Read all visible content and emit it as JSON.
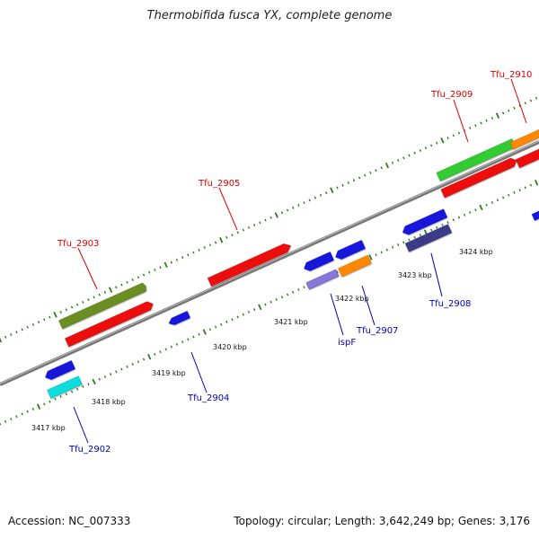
{
  "title": "Thermobifida fusca YX, complete genome",
  "footer": {
    "accession": "Accession: NC_007333",
    "topology": "Topology: circular; Length: 3,642,249 bp; Genes: 3,176"
  },
  "colors": {
    "backbone": "#888888",
    "tick": "#2e7d1e",
    "label_forward": "#dd0000",
    "label_reverse": "#0000bb",
    "cds_red": "#ee1111",
    "cds_olive": "#6b8e23",
    "cds_green": "#33cc33",
    "cds_blue": "#1515dd",
    "cds_cyan": "#11dddd",
    "cds_purple": "#8877dd",
    "cds_orange": "#ff8800",
    "cds_navy": "#3a3a8a"
  },
  "scale_labels": [
    "3417 kbp",
    "3418 kbp",
    "3419 kbp",
    "3420 kbp",
    "3421 kbp",
    "3422 kbp",
    "3423 kbp",
    "3424 kbp"
  ],
  "gene_labels": [
    {
      "text": "Tfu_2903",
      "strand": "forward"
    },
    {
      "text": "Tfu_2905",
      "strand": "forward"
    },
    {
      "text": "Tfu_2909",
      "strand": "forward"
    },
    {
      "text": "Tfu_2910",
      "strand": "forward"
    },
    {
      "text": "Tfu_2902",
      "strand": "reverse"
    },
    {
      "text": "Tfu_2904",
      "strand": "reverse"
    },
    {
      "text": "ispF",
      "strand": "reverse"
    },
    {
      "text": "Tfu_2907",
      "strand": "reverse"
    },
    {
      "text": "Tfu_2908",
      "strand": "reverse"
    }
  ]
}
